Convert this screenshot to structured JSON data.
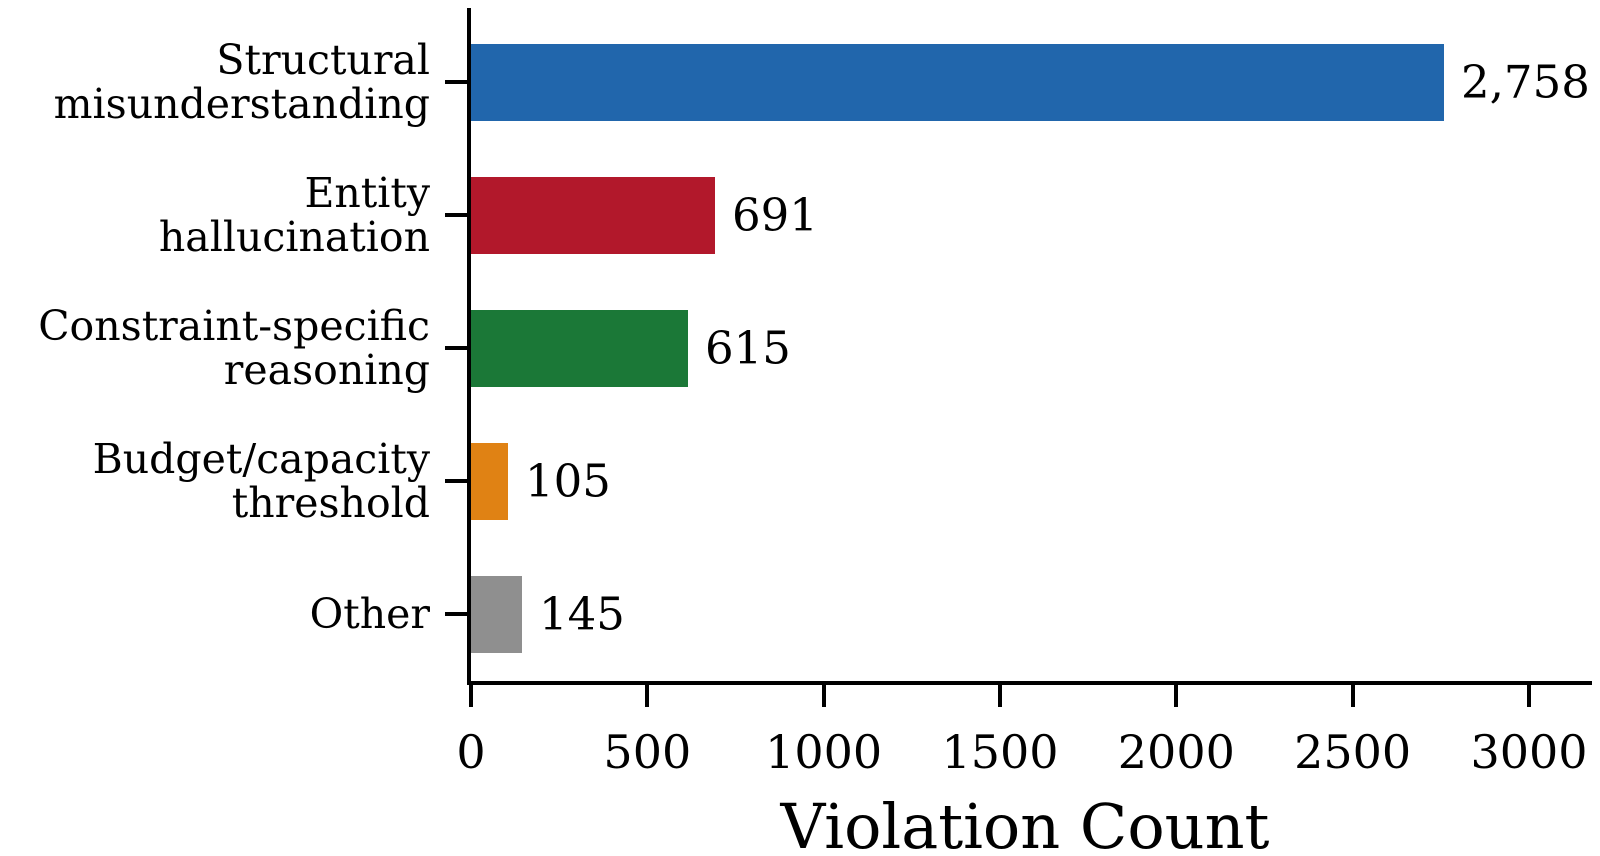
{
  "chart_data": {
    "type": "bar",
    "orientation": "horizontal",
    "title": "",
    "xlabel": "Violation Count",
    "ylabel": "",
    "categories": [
      "Structural misunderstanding",
      "Entity hallucination",
      "Constraint-specific reasoning",
      "Budget/capacity threshold",
      "Other"
    ],
    "category_label_lines": [
      [
        "Structural",
        "misunderstanding"
      ],
      [
        "Entity",
        "hallucination"
      ],
      [
        "Constraint-specific",
        "reasoning"
      ],
      [
        "Budget/capacity",
        "threshold"
      ],
      [
        "Other"
      ]
    ],
    "values": [
      2758,
      691,
      615,
      105,
      145
    ],
    "value_labels": [
      "2,758",
      "691",
      "615",
      "105",
      "145"
    ],
    "bar_colors": [
      "#2166ac",
      "#b2182b",
      "#1b7837",
      "#e08214",
      "#8f8f8f"
    ],
    "x_ticks": [
      0,
      500,
      1000,
      1500,
      2000,
      2500,
      3000
    ],
    "x_tick_labels": [
      "0",
      "500",
      "1000",
      "1500",
      "2000",
      "2500",
      "3000"
    ],
    "xlim": [
      0,
      3180
    ],
    "grid": false,
    "legend_position": "none",
    "axis_color": "#000000",
    "background_color": "#ffffff"
  }
}
